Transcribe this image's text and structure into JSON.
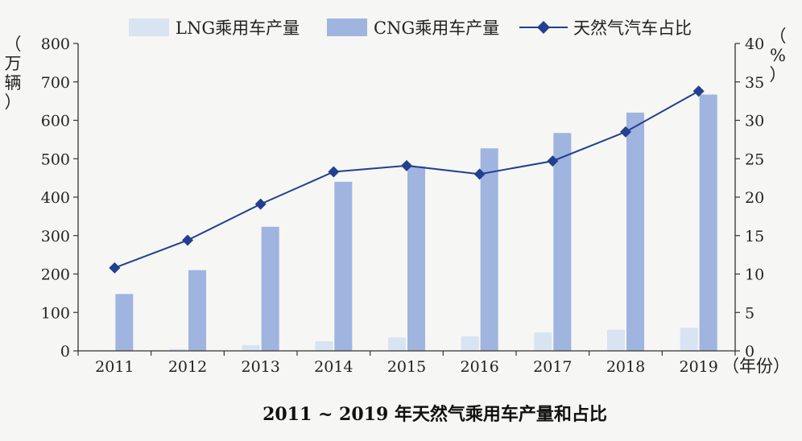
{
  "chart_data": {
    "type": "bar+line",
    "title": "2011 ~ 2019 年天然气乘用车产量和占比",
    "categories": [
      "2011",
      "2012",
      "2013",
      "2014",
      "2015",
      "2016",
      "2017",
      "2018",
      "2019"
    ],
    "series": [
      {
        "name": "LNG乘用车产量",
        "type": "bar",
        "axis": "left",
        "color": "#d8e4f2",
        "values": [
          2,
          5,
          15,
          25,
          35,
          38,
          48,
          55,
          60
        ]
      },
      {
        "name": "CNG乘用车产量",
        "type": "bar",
        "axis": "left",
        "color": "#9fb4df",
        "values": [
          148,
          210,
          323,
          440,
          480,
          527,
          567,
          620,
          667
        ]
      },
      {
        "name": "天然气汽车占比",
        "type": "line",
        "axis": "right",
        "color": "#23408f",
        "values": [
          10.8,
          14.4,
          19.1,
          23.3,
          24.1,
          23.0,
          24.7,
          28.5,
          33.8
        ]
      }
    ],
    "y_left": {
      "label_chars": [
        "（",
        "万",
        "辆",
        "）"
      ],
      "ylim": [
        0,
        800
      ],
      "ticks": [
        "0",
        "100",
        "200",
        "300",
        "400",
        "500",
        "600",
        "700",
        "800"
      ]
    },
    "y_right": {
      "label_chars": [
        "（",
        "%",
        "）"
      ],
      "ylim": [
        0,
        40
      ],
      "ticks": [
        "0",
        "5",
        "10",
        "15",
        "20",
        "25",
        "30",
        "35",
        "40"
      ]
    },
    "xlabel": "（年份）",
    "legend_position": "top",
    "grid": false
  }
}
